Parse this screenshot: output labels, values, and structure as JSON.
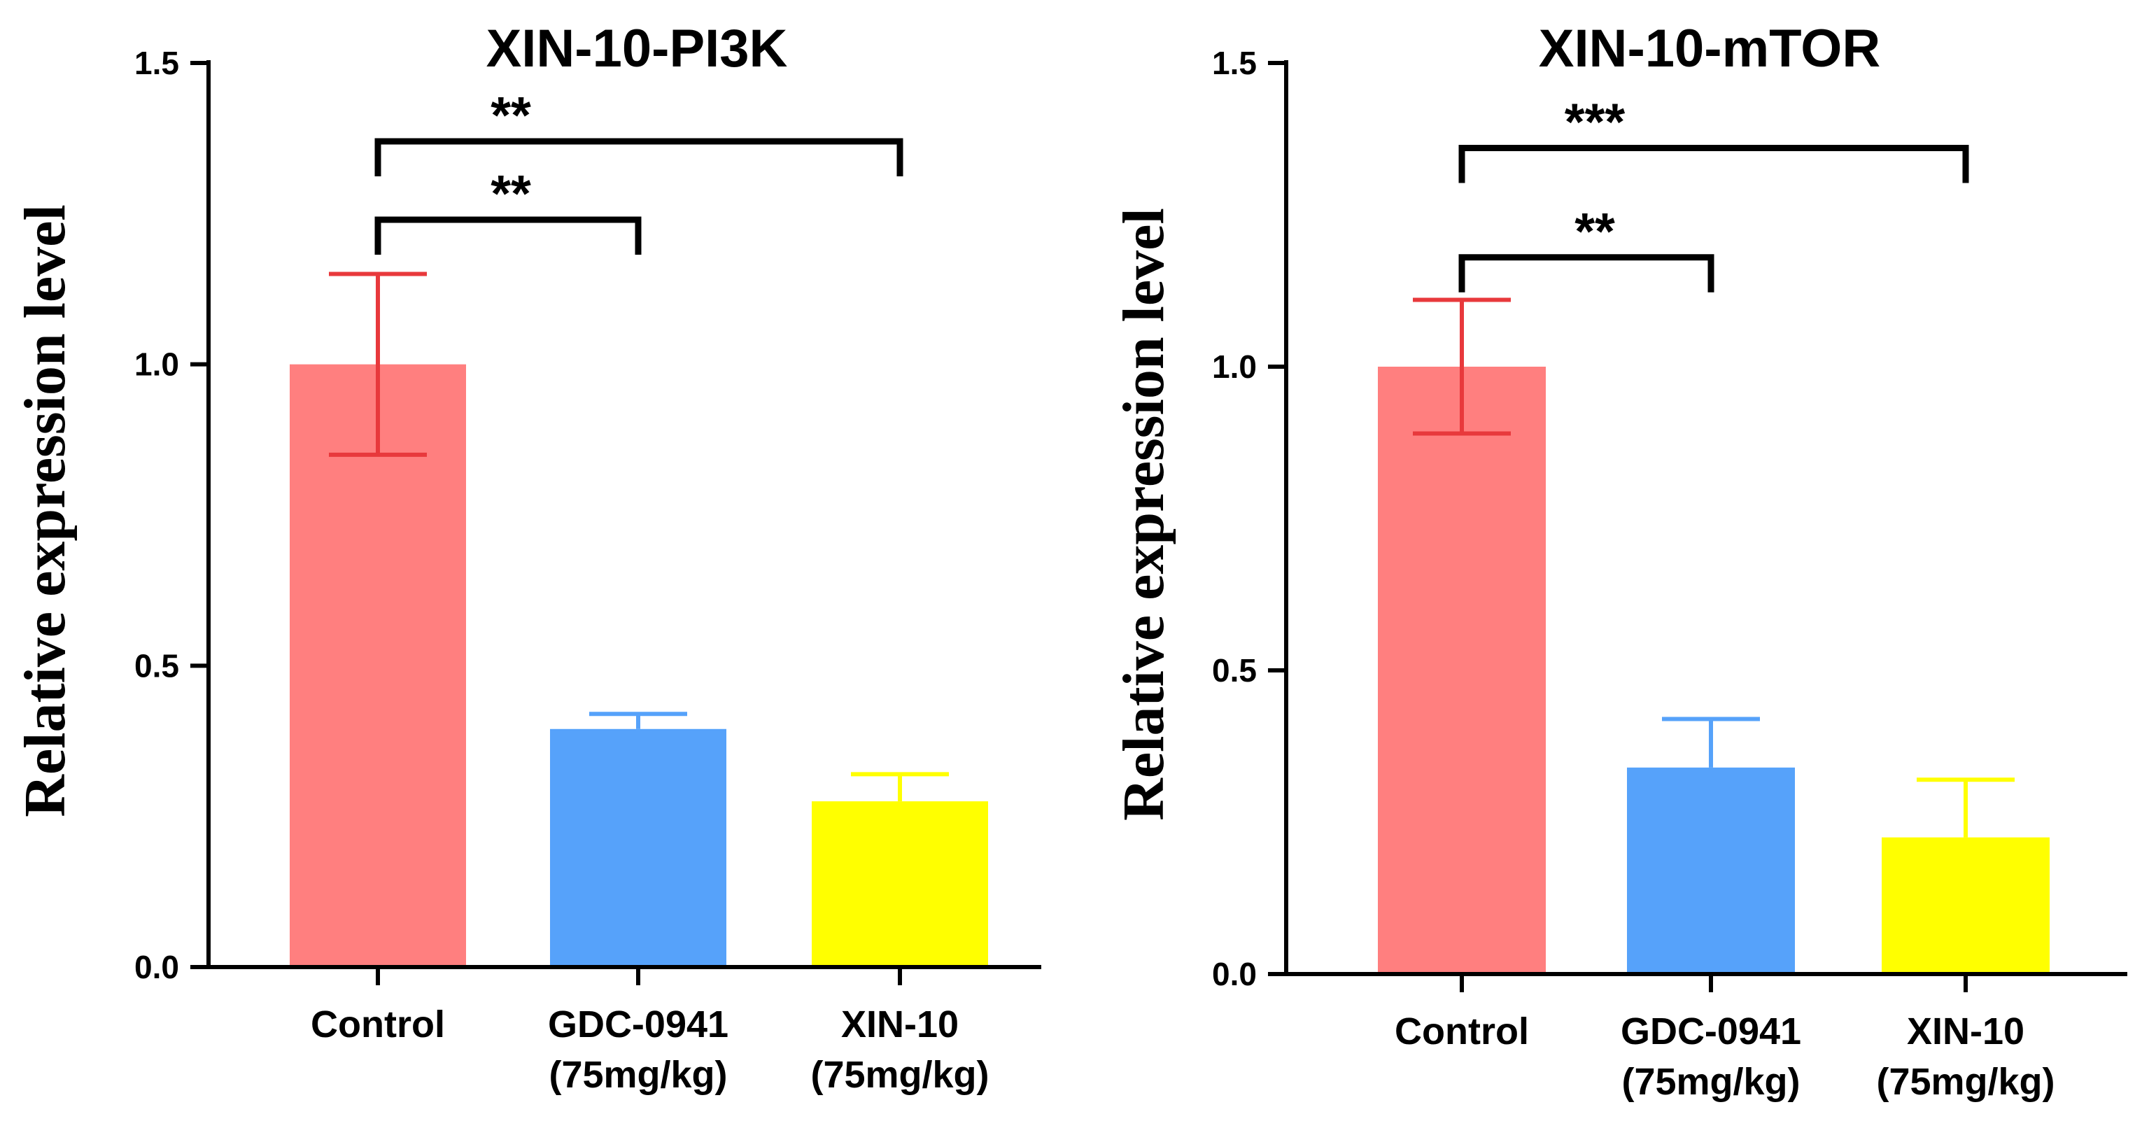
{
  "chart_data": [
    {
      "type": "bar",
      "title": "XIN-10-PI3K",
      "ylabel": "Relative expression level",
      "xlabel": "",
      "ylim": [
        0,
        1.5
      ],
      "yticks": [
        "0.0",
        "0.5",
        "1.0",
        "1.5"
      ],
      "ytick_values": [
        0,
        0.5,
        1.0,
        1.5
      ],
      "categories": [
        {
          "line1": "Control",
          "line2": ""
        },
        {
          "line1": "GDC-0941",
          "line2": "(75mg/kg)"
        },
        {
          "line1": "XIN-10",
          "line2": "(75mg/kg)"
        }
      ],
      "values": [
        1.0,
        0.395,
        0.275
      ],
      "error_upper": [
        1.15,
        0.42,
        0.32
      ],
      "error_lower": [
        0.85,
        0.395,
        0.275
      ],
      "colors": [
        "#ff7f7f",
        "#56a2fa",
        "#ffff00"
      ],
      "error_colors": [
        "#e8393c",
        "#56a2fa",
        "#ffff00"
      ],
      "significance": [
        {
          "from": 0,
          "to": 1,
          "label": "**",
          "y": 1.24
        },
        {
          "from": 0,
          "to": 2,
          "label": "**",
          "y": 1.37
        }
      ]
    },
    {
      "type": "bar",
      "title": "XIN-10-mTOR",
      "ylabel": "Relative expression level",
      "xlabel": "",
      "ylim": [
        0,
        1.5
      ],
      "yticks": [
        "0.0",
        "0.5",
        "1.0",
        "1.5"
      ],
      "ytick_values": [
        0,
        0.5,
        1.0,
        1.5
      ],
      "categories": [
        {
          "line1": "Control",
          "line2": ""
        },
        {
          "line1": "GDC-0941",
          "line2": "(75mg/kg)"
        },
        {
          "line1": "XIN-10",
          "line2": "(75mg/kg)"
        }
      ],
      "values": [
        1.0,
        0.34,
        0.225
      ],
      "error_upper": [
        1.11,
        0.42,
        0.32
      ],
      "error_lower": [
        0.89,
        0.34,
        0.225
      ],
      "colors": [
        "#ff7f7f",
        "#56a2fa",
        "#ffff00"
      ],
      "error_colors": [
        "#e8393c",
        "#56a2fa",
        "#ffff00"
      ],
      "significance": [
        {
          "from": 0,
          "to": 1,
          "label": "**",
          "y": 1.18
        },
        {
          "from": 0,
          "to": 2,
          "label": "***",
          "y": 1.36
        }
      ]
    }
  ]
}
